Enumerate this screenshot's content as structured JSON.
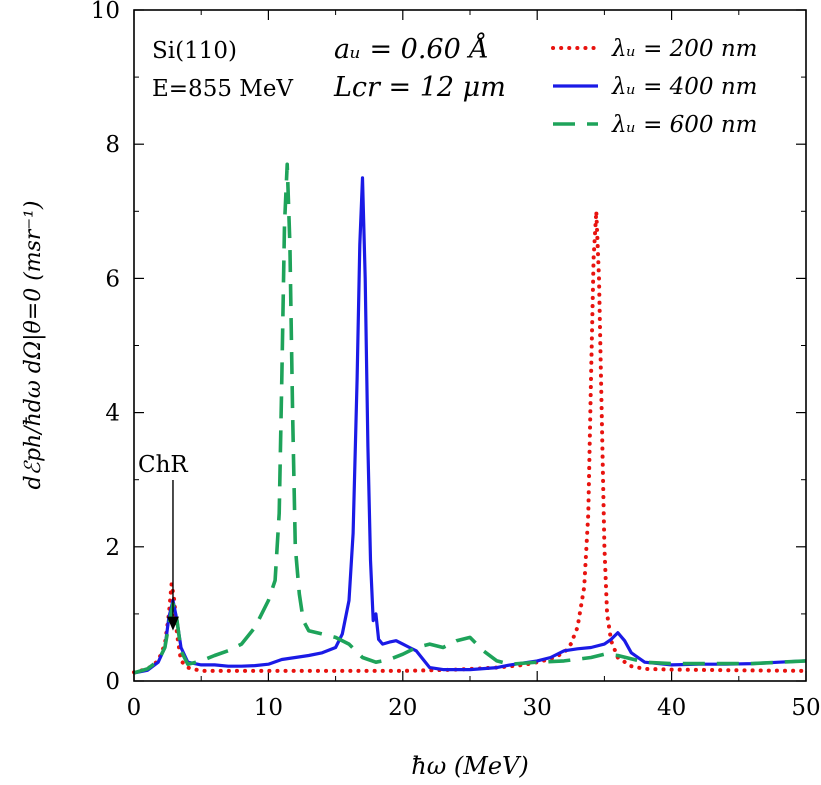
{
  "chart_data": {
    "type": "line",
    "xlabel": "ħω (MeV)",
    "ylabel": "dℰph/ħdω dΩ|θ=0 (msr⁻¹)",
    "xlim": [
      0,
      50
    ],
    "ylim": [
      0,
      10
    ],
    "xticks": [
      0,
      10,
      20,
      30,
      40,
      50
    ],
    "yticks": [
      0,
      2,
      4,
      6,
      8,
      10
    ],
    "grid": false,
    "legend": "top-right",
    "annotations": {
      "material": "Si(110)",
      "energy": "E=855 MeV",
      "amplitude": "aᵤ = 0.60 Å",
      "length": "Lcr = 12 μm",
      "chr_label": "ChR",
      "chr_arrow_target": [
        2.9,
        0.75
      ]
    },
    "series": [
      {
        "name": "λᵤ = 200 nm",
        "color": "#e8130f",
        "dash": "dotted",
        "x": [
          0,
          1,
          1.8,
          2.3,
          2.6,
          2.8,
          3.0,
          3.2,
          3.5,
          4.0,
          5,
          8,
          12,
          16,
          20,
          24,
          27,
          29,
          30,
          31,
          32,
          32.5,
          33,
          33.5,
          33.8,
          34.0,
          34.2,
          34.4,
          34.6,
          34.8,
          35.0,
          35.2,
          35.5,
          36.0,
          37,
          38,
          40,
          45,
          50
        ],
        "y": [
          0.13,
          0.18,
          0.3,
          0.55,
          1.0,
          1.45,
          1.2,
          0.7,
          0.3,
          0.2,
          0.15,
          0.15,
          0.15,
          0.15,
          0.15,
          0.17,
          0.2,
          0.24,
          0.28,
          0.33,
          0.42,
          0.55,
          0.8,
          1.4,
          2.5,
          4.5,
          6.3,
          7.0,
          6.0,
          4.0,
          2.0,
          1.0,
          0.6,
          0.35,
          0.22,
          0.18,
          0.17,
          0.16,
          0.15
        ]
      },
      {
        "name": "λᵤ = 400 nm",
        "color": "#1a1ae6",
        "dash": "solid",
        "x": [
          0,
          1,
          1.8,
          2.3,
          2.6,
          2.9,
          3.2,
          3.5,
          4.0,
          5,
          6,
          7,
          8,
          9,
          10,
          11,
          12,
          13,
          14,
          15,
          15.5,
          16,
          16.3,
          16.6,
          16.8,
          17.0,
          17.2,
          17.4,
          17.6,
          17.8,
          18.0,
          18.2,
          18.5,
          19,
          19.5,
          20,
          20.5,
          21,
          22,
          23,
          25,
          27,
          28,
          30,
          31,
          32,
          33,
          34,
          35,
          35.5,
          36.0,
          36.5,
          37,
          38,
          40,
          42,
          44,
          46,
          48,
          50
        ],
        "y": [
          0.12,
          0.16,
          0.28,
          0.5,
          0.95,
          1.2,
          0.9,
          0.5,
          0.28,
          0.24,
          0.24,
          0.22,
          0.22,
          0.23,
          0.25,
          0.32,
          0.35,
          0.38,
          0.42,
          0.5,
          0.7,
          1.2,
          2.2,
          4.5,
          6.5,
          7.5,
          6.0,
          3.5,
          1.8,
          0.9,
          1.0,
          0.62,
          0.55,
          0.58,
          0.6,
          0.55,
          0.5,
          0.45,
          0.2,
          0.17,
          0.17,
          0.2,
          0.24,
          0.3,
          0.35,
          0.45,
          0.48,
          0.5,
          0.55,
          0.62,
          0.72,
          0.6,
          0.42,
          0.28,
          0.24,
          0.25,
          0.25,
          0.26,
          0.28,
          0.3
        ]
      },
      {
        "name": "λᵤ = 600 nm",
        "color": "#1ea35a",
        "dash": "dashed",
        "x": [
          0,
          1,
          1.8,
          2.3,
          2.6,
          2.9,
          3.2,
          3.5,
          4.0,
          5,
          6,
          7,
          8,
          9,
          10,
          10.5,
          10.8,
          11.0,
          11.2,
          11.4,
          11.6,
          11.8,
          12.0,
          12.3,
          12.6,
          13,
          14,
          15,
          16,
          17,
          18,
          19,
          20,
          21,
          22,
          23,
          24,
          25,
          26,
          27,
          28,
          30,
          32,
          34,
          35,
          36,
          38,
          40,
          43,
          46,
          48,
          50
        ],
        "y": [
          0.12,
          0.18,
          0.3,
          0.5,
          0.85,
          1.15,
          0.9,
          0.45,
          0.25,
          0.3,
          0.38,
          0.45,
          0.55,
          0.8,
          1.2,
          1.5,
          2.5,
          4.5,
          6.8,
          7.7,
          6.5,
          4.0,
          2.0,
          1.3,
          0.9,
          0.75,
          0.7,
          0.65,
          0.55,
          0.35,
          0.28,
          0.32,
          0.4,
          0.5,
          0.55,
          0.5,
          0.6,
          0.65,
          0.45,
          0.3,
          0.25,
          0.28,
          0.3,
          0.35,
          0.4,
          0.38,
          0.28,
          0.26,
          0.26,
          0.26,
          0.28,
          0.3
        ]
      }
    ]
  }
}
